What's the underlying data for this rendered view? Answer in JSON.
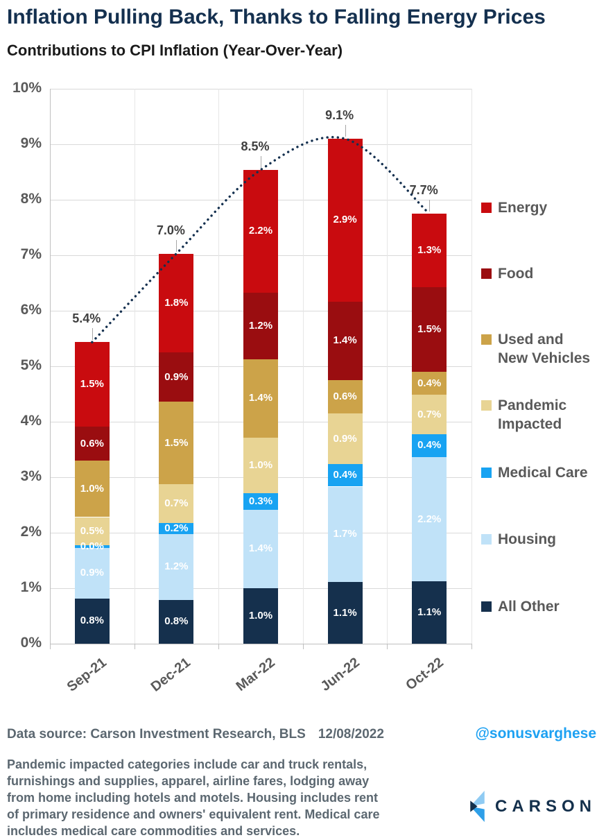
{
  "header": {
    "title": "Inflation Pulling Back, Thanks to Falling Energy Prices",
    "subtitle": "Contributions to CPI Inflation (Year-Over-Year)"
  },
  "chart_data": {
    "type": "bar",
    "stacked": true,
    "title": "Contributions to CPI Inflation (Year-Over-Year)",
    "categories": [
      "Sep-21",
      "Dec-21",
      "Mar-22",
      "Jun-22",
      "Oct-22"
    ],
    "series": [
      {
        "name": "Energy",
        "color": "#C90B0F",
        "values": [
          1.5,
          1.8,
          2.2,
          2.9,
          1.3
        ]
      },
      {
        "name": "Food",
        "color": "#9A0D10",
        "values": [
          0.6,
          0.9,
          1.2,
          1.4,
          1.5
        ]
      },
      {
        "name": "Used and\nNew Vehicles",
        "color": "#CCA349",
        "values": [
          1.0,
          1.5,
          1.4,
          0.6,
          0.4
        ]
      },
      {
        "name": "Pandemic\nImpacted",
        "color": "#E8D494",
        "values": [
          0.5,
          0.7,
          1.0,
          0.9,
          0.7
        ]
      },
      {
        "name": "Medical Care",
        "color": "#18A3F2",
        "values": [
          0.0,
          0.2,
          0.3,
          0.4,
          0.4
        ]
      },
      {
        "name": "Housing",
        "color": "#C0E2F8",
        "values": [
          0.9,
          1.2,
          1.4,
          1.7,
          2.2
        ]
      },
      {
        "name": "All Other",
        "color": "#15304D",
        "values": [
          0.8,
          0.8,
          1.0,
          1.1,
          1.1
        ]
      }
    ],
    "totals_labels": [
      "5.4%",
      "7.0%",
      "8.5%",
      "9.1%",
      "7.7%"
    ],
    "totals_values": [
      5.39,
      7.03,
      8.54,
      9.1,
      7.75
    ],
    "trend_line": {
      "style": "dotted",
      "color": "#14304F"
    },
    "ylim": [
      0,
      10
    ],
    "yticks": [
      "0%",
      "1%",
      "2%",
      "3%",
      "4%",
      "5%",
      "6%",
      "7%",
      "8%",
      "9%",
      "10%"
    ],
    "grid": true,
    "legend_position": "right"
  },
  "footer": {
    "source_label": "Data source: Carson Investment Research, BLS",
    "date": "12/08/2022",
    "handle": "@sonusvarghese",
    "footnote_lines": [
      "Pandemic impacted categories include car and truck rentals,",
      "furnishings and supplies, apparel, airline fares, lodging away",
      "from home including hotels and motels. Housing includes rent",
      "of primary residence and owners' equivalent rent. Medical care",
      "includes medical care commodities and services."
    ],
    "logo_text": "CARSON"
  },
  "colors": {
    "title": "#14304F",
    "axis_text": "#595959",
    "gridline": "#D9D9D9",
    "trend": "#14304F",
    "handle": "#1DA1F2",
    "footnote": "#5B6770",
    "logo_light_blue": "#8FCBF3",
    "logo_blue": "#2E9FE8",
    "logo_navy": "#14304C"
  }
}
